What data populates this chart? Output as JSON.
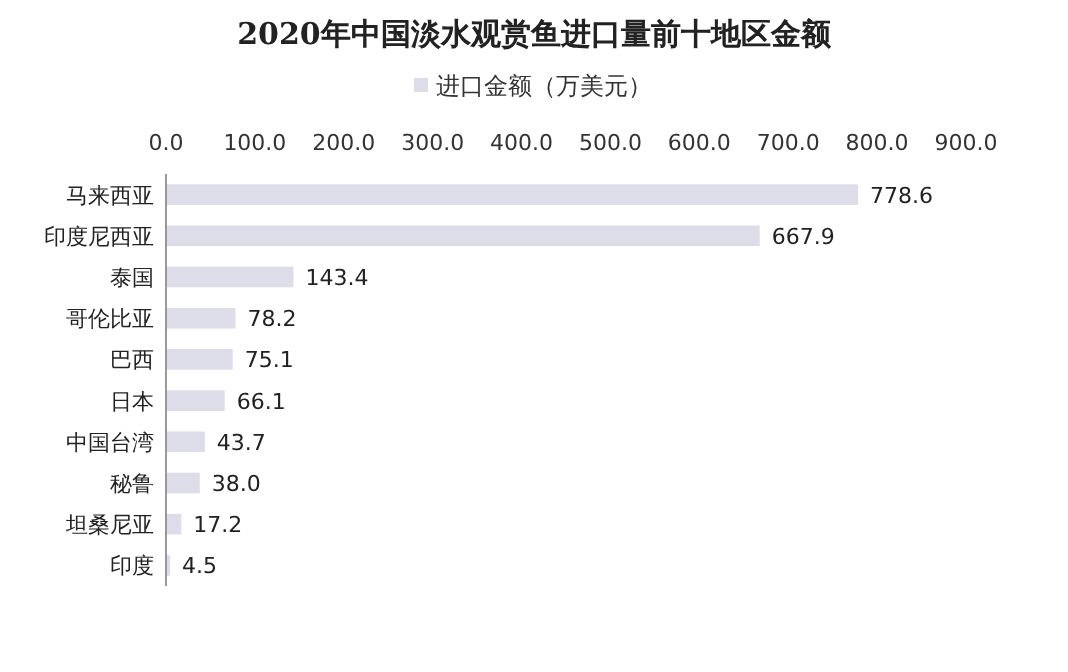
{
  "chart_data": {
    "type": "bar",
    "orientation": "horizontal",
    "title": "2020年中国淡水观赏鱼进口量前十地区金额",
    "categories": [
      "马来西亚",
      "印度尼西亚",
      "泰国",
      "哥伦比亚",
      "巴西",
      "日本",
      "中国台湾",
      "秘鲁",
      "坦桑尼亚",
      "印度"
    ],
    "series": [
      {
        "name": "进口金额（万美元）",
        "color": "#dcdde8",
        "values": [
          778.6,
          667.9,
          143.4,
          78.2,
          75.1,
          66.1,
          43.7,
          38.0,
          17.2,
          4.5
        ],
        "value_labels": [
          "778.6",
          "667.9",
          "143.4",
          "78.2",
          "75.1",
          "66.1",
          "43.7",
          "38.0",
          "17.2",
          "4.5"
        ]
      }
    ],
    "xlim": [
      0,
      900
    ],
    "xticks": [
      {
        "value": 0,
        "label": "0.0"
      },
      {
        "value": 100,
        "label": "100.0"
      },
      {
        "value": 200,
        "label": "200.0"
      },
      {
        "value": 300,
        "label": "300.0"
      },
      {
        "value": 400,
        "label": "400.0"
      },
      {
        "value": 500,
        "label": "500.0"
      },
      {
        "value": 600,
        "label": "600.0"
      },
      {
        "value": 700,
        "label": "700.0"
      },
      {
        "value": 800,
        "label": "800.0"
      },
      {
        "value": 900,
        "label": "900.0"
      }
    ],
    "legend": "top",
    "grid": false
  }
}
